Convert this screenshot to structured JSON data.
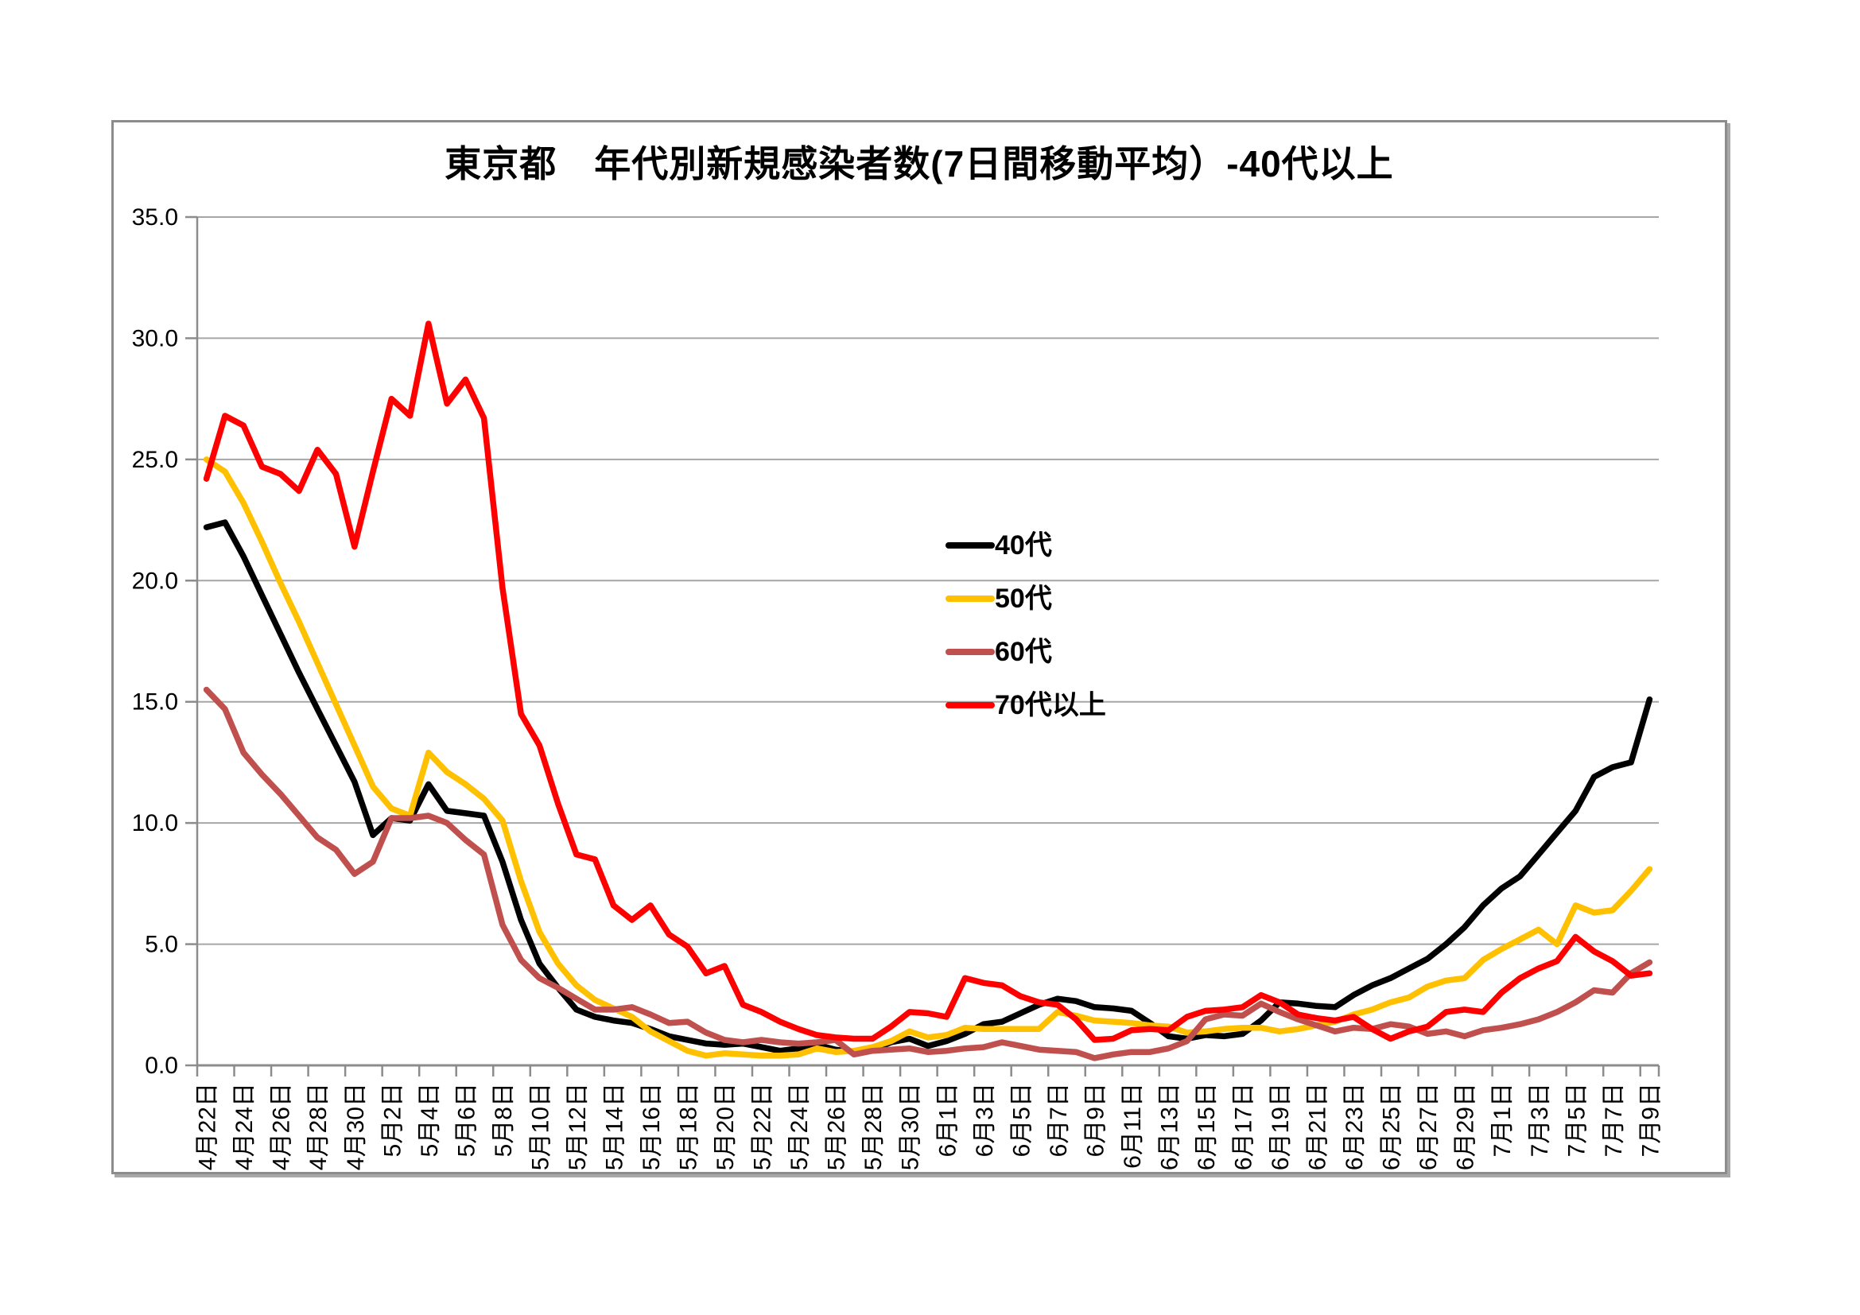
{
  "chart_data": {
    "type": "line",
    "title": "東京都　年代別新規感染者数(7日間移動平均）-40代以上",
    "xlabel": "",
    "ylabel": "",
    "ylim": [
      0,
      35
    ],
    "grid": true,
    "legend_position": "inside-upper-middle",
    "y_tick_labels": [
      "35.0",
      "30.0",
      "25.0",
      "20.0",
      "15.0",
      "10.0",
      "5.0",
      "0.0"
    ],
    "x_label_step": 2,
    "categories": [
      "4月22日",
      "4月23日",
      "4月24日",
      "4月25日",
      "4月26日",
      "4月27日",
      "4月28日",
      "4月29日",
      "4月30日",
      "5月1日",
      "5月2日",
      "5月3日",
      "5月4日",
      "5月5日",
      "5月6日",
      "5月7日",
      "5月8日",
      "5月9日",
      "5月10日",
      "5月11日",
      "5月12日",
      "5月13日",
      "5月14日",
      "5月15日",
      "5月16日",
      "5月17日",
      "5月18日",
      "5月19日",
      "5月20日",
      "5月21日",
      "5月22日",
      "5月23日",
      "5月24日",
      "5月25日",
      "5月26日",
      "5月27日",
      "5月28日",
      "5月29日",
      "5月30日",
      "5月31日",
      "6月1日",
      "6月2日",
      "6月3日",
      "6月4日",
      "6月5日",
      "6月6日",
      "6月7日",
      "6月8日",
      "6月9日",
      "6月10日",
      "6月11日",
      "6月12日",
      "6月13日",
      "6月14日",
      "6月15日",
      "6月16日",
      "6月17日",
      "6月18日",
      "6月19日",
      "6月20日",
      "6月21日",
      "6月22日",
      "6月23日",
      "6月24日",
      "6月25日",
      "6月26日",
      "6月27日",
      "6月28日",
      "6月29日",
      "6月30日",
      "7月1日",
      "7月2日",
      "7月3日",
      "7月4日",
      "7月5日",
      "7月6日",
      "7月7日",
      "7月8日",
      "7月9日"
    ],
    "series": [
      {
        "name": "40代",
        "color": "#000000",
        "values": [
          22.2,
          22.4,
          21.0,
          19.4,
          17.8,
          16.2,
          14.7,
          13.2,
          11.7,
          9.5,
          10.2,
          10.1,
          11.6,
          10.5,
          10.4,
          10.3,
          8.4,
          6.0,
          4.2,
          3.2,
          2.3,
          2.0,
          1.85,
          1.75,
          1.5,
          1.2,
          1.05,
          0.9,
          0.85,
          0.9,
          0.75,
          0.6,
          0.7,
          0.85,
          0.65,
          0.55,
          0.65,
          0.95,
          1.1,
          0.8,
          1.0,
          1.3,
          1.7,
          1.8,
          2.15,
          2.5,
          2.75,
          2.65,
          2.4,
          2.35,
          2.25,
          1.75,
          1.2,
          1.1,
          1.25,
          1.2,
          1.3,
          1.85,
          2.6,
          2.55,
          2.45,
          2.4,
          2.9,
          3.3,
          3.6,
          4.0,
          4.4,
          5.0,
          5.7,
          6.6,
          7.3,
          7.8,
          8.7,
          9.6,
          10.5,
          11.9,
          12.3,
          12.5,
          15.1
        ]
      },
      {
        "name": "50代",
        "color": "#FFC000",
        "values": [
          25.0,
          24.5,
          23.2,
          21.6,
          19.9,
          18.3,
          16.6,
          14.9,
          13.2,
          11.5,
          10.6,
          10.3,
          12.9,
          12.1,
          11.6,
          11.0,
          10.1,
          7.6,
          5.5,
          4.2,
          3.3,
          2.7,
          2.35,
          2.0,
          1.4,
          1.0,
          0.6,
          0.4,
          0.5,
          0.45,
          0.4,
          0.4,
          0.45,
          0.7,
          0.55,
          0.6,
          0.75,
          1.0,
          1.4,
          1.15,
          1.25,
          1.55,
          1.5,
          1.5,
          1.5,
          1.5,
          2.2,
          2.05,
          1.85,
          1.8,
          1.75,
          1.65,
          1.6,
          1.35,
          1.4,
          1.5,
          1.55,
          1.55,
          1.4,
          1.5,
          1.65,
          1.8,
          2.1,
          2.3,
          2.6,
          2.8,
          3.25,
          3.5,
          3.6,
          4.35,
          4.8,
          5.2,
          5.6,
          5.0,
          6.6,
          6.3,
          6.4,
          7.2,
          8.1
        ]
      },
      {
        "name": "60代",
        "color": "#C0504D",
        "values": [
          15.5,
          14.7,
          12.9,
          12.0,
          11.2,
          10.3,
          9.4,
          8.9,
          7.9,
          8.4,
          10.2,
          10.2,
          10.3,
          10.0,
          9.3,
          8.7,
          5.8,
          4.35,
          3.6,
          3.2,
          2.75,
          2.3,
          2.3,
          2.4,
          2.1,
          1.75,
          1.8,
          1.35,
          1.05,
          0.95,
          1.05,
          0.95,
          0.9,
          0.95,
          1.05,
          0.45,
          0.6,
          0.65,
          0.7,
          0.55,
          0.6,
          0.7,
          0.75,
          0.95,
          0.8,
          0.65,
          0.6,
          0.55,
          0.3,
          0.45,
          0.55,
          0.55,
          0.7,
          1.0,
          1.9,
          2.1,
          2.05,
          2.55,
          2.2,
          1.9,
          1.65,
          1.4,
          1.55,
          1.5,
          1.7,
          1.6,
          1.3,
          1.4,
          1.2,
          1.45,
          1.55,
          1.7,
          1.9,
          2.2,
          2.6,
          3.1,
          3.0,
          3.8,
          4.25
        ]
      },
      {
        "name": "70代以上",
        "color": "#FF0000",
        "values": [
          24.2,
          26.8,
          26.4,
          24.7,
          24.4,
          23.7,
          25.4,
          24.4,
          21.4,
          24.5,
          27.5,
          26.8,
          30.6,
          27.3,
          28.3,
          26.7,
          19.7,
          14.5,
          13.2,
          10.8,
          8.7,
          8.5,
          6.6,
          6.0,
          6.6,
          5.4,
          4.9,
          3.8,
          4.1,
          2.5,
          2.2,
          1.8,
          1.5,
          1.25,
          1.15,
          1.1,
          1.1,
          1.6,
          2.2,
          2.15,
          2.0,
          3.6,
          3.4,
          3.3,
          2.85,
          2.6,
          2.5,
          1.9,
          1.05,
          1.1,
          1.45,
          1.5,
          1.45,
          2.0,
          2.25,
          2.3,
          2.4,
          2.9,
          2.6,
          2.1,
          1.95,
          1.85,
          2.0,
          1.5,
          1.1,
          1.4,
          1.6,
          2.2,
          2.3,
          2.2,
          3.0,
          3.6,
          4.0,
          4.3,
          5.3,
          4.7,
          4.3,
          3.7,
          3.8
        ]
      }
    ],
    "colors": {
      "gridline": "#A6A6A6",
      "axis": "#8C8C8C",
      "frame_border": "#8C8C8C",
      "text": "#000000",
      "background": "#FFFFFF"
    }
  }
}
